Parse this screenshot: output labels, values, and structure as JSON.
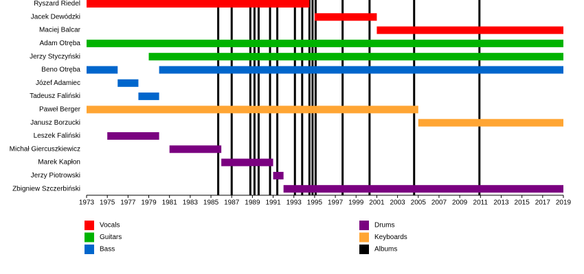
{
  "chart_data": {
    "type": "timeline",
    "categories": [
      "Ryszard Riedel",
      "Jacek Dewódzki",
      "Maciej Balcar",
      "Adam Otręba",
      "Jerzy Styczyński",
      "Beno Otręba",
      "Józef Adamiec",
      "Tadeusz Faliński",
      "Paweł Berger",
      "Janusz Borzucki",
      "Leszek Faliński",
      "Michał Giercuszkiewicz",
      "Marek Kapłon",
      "Jerzy Piotrowski",
      "Zbigniew Szczerbiński"
    ],
    "series": [
      {
        "name": "Vocals",
        "color": "#ff0000",
        "values": [
          [
            [
              1973,
              1994.5
            ]
          ],
          [
            [
              1995,
              2001
            ]
          ],
          [
            [
              2001,
              2019
            ]
          ],
          null,
          null,
          null,
          null,
          null,
          null,
          null,
          null,
          null,
          null,
          null,
          null
        ]
      },
      {
        "name": "Guitars",
        "color": "#00b300",
        "values": [
          null,
          null,
          null,
          [
            [
              1973,
              2019
            ]
          ],
          [
            [
              1979,
              2019
            ]
          ],
          null,
          null,
          null,
          null,
          null,
          null,
          null,
          null,
          null,
          null
        ]
      },
      {
        "name": "Bass",
        "color": "#0066cc",
        "values": [
          null,
          null,
          null,
          null,
          null,
          [
            [
              1973,
              1976
            ],
            [
              1980,
              2019
            ]
          ],
          [
            [
              1976,
              1978
            ]
          ],
          [
            [
              1978,
              1980
            ]
          ],
          null,
          null,
          null,
          null,
          null,
          null,
          null
        ]
      },
      {
        "name": "Drums",
        "color": "#7a0080",
        "values": [
          null,
          null,
          null,
          null,
          null,
          null,
          null,
          null,
          null,
          null,
          [
            [
              1975,
              1980
            ]
          ],
          [
            [
              1981,
              1986
            ]
          ],
          [
            [
              1986,
              1991
            ]
          ],
          [
            [
              1991,
              1992
            ]
          ],
          [
            [
              1992,
              2019
            ]
          ]
        ]
      },
      {
        "name": "Keyboards",
        "color": "#ffa533",
        "values": [
          null,
          null,
          null,
          null,
          null,
          null,
          null,
          null,
          [
            [
              1973,
              2005
            ]
          ],
          [
            [
              2005,
              2019
            ]
          ],
          null,
          null,
          null,
          null,
          null
        ]
      }
    ],
    "events": {
      "name": "Albums",
      "color": "#000000",
      "values": [
        1985.7,
        1987.0,
        1988.8,
        1989.2,
        1989.6,
        1990.7,
        1991.4,
        1993.1,
        1993.8,
        1994.5,
        1994.8,
        1995.1,
        1997.7,
        2000.3,
        2004.6,
        2010.9
      ]
    },
    "xlim": [
      1973,
      2019
    ],
    "xticks": [
      1973,
      1975,
      1977,
      1979,
      1981,
      1983,
      1985,
      1987,
      1989,
      1991,
      1993,
      1995,
      1997,
      1999,
      2001,
      2003,
      2005,
      2007,
      2009,
      2011,
      2013,
      2015,
      2017,
      2019
    ]
  }
}
